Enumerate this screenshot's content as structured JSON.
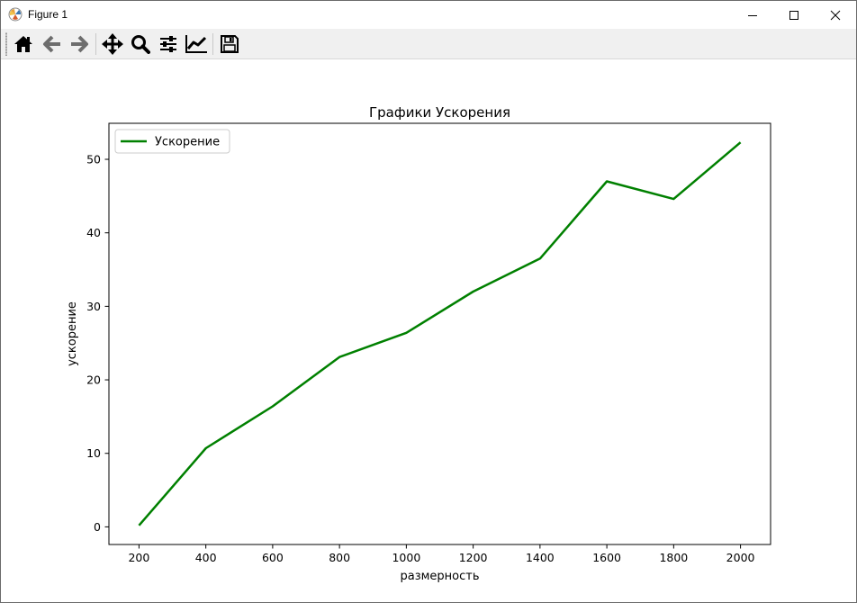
{
  "window": {
    "title": "Figure 1"
  },
  "toolbar": {
    "items": [
      {
        "icon": "home-icon"
      },
      {
        "icon": "back-arrow-icon"
      },
      {
        "icon": "forward-arrow-icon"
      },
      {
        "icon": "pan-move-icon"
      },
      {
        "icon": "zoom-magnifier-icon"
      },
      {
        "icon": "subplots-sliders-icon"
      },
      {
        "icon": "edit-axis-icon"
      },
      {
        "icon": "save-floppy-icon"
      }
    ]
  },
  "colors": {
    "line": "#008000",
    "toolbar_bg": "#f0f0f0"
  },
  "chart_data": {
    "type": "line",
    "title": "Графики Ускорения",
    "xlabel": "размерность",
    "ylabel": "ускорение",
    "x": [
      200,
      400,
      600,
      800,
      1000,
      1200,
      1400,
      1600,
      1800,
      2000
    ],
    "series": [
      {
        "name": "Ускорение",
        "color": "#008000",
        "values": [
          0.2,
          10.7,
          16.4,
          23.1,
          26.4,
          32.0,
          36.5,
          47.0,
          44.6,
          52.3
        ]
      }
    ],
    "xticks": [
      200,
      400,
      600,
      800,
      1000,
      1200,
      1400,
      1600,
      1800,
      2000
    ],
    "yticks": [
      0,
      10,
      20,
      30,
      40,
      50
    ],
    "xlim": [
      110,
      2090
    ],
    "ylim": [
      -2.4,
      54.9
    ],
    "grid": false,
    "legend_position": "upper-left"
  }
}
